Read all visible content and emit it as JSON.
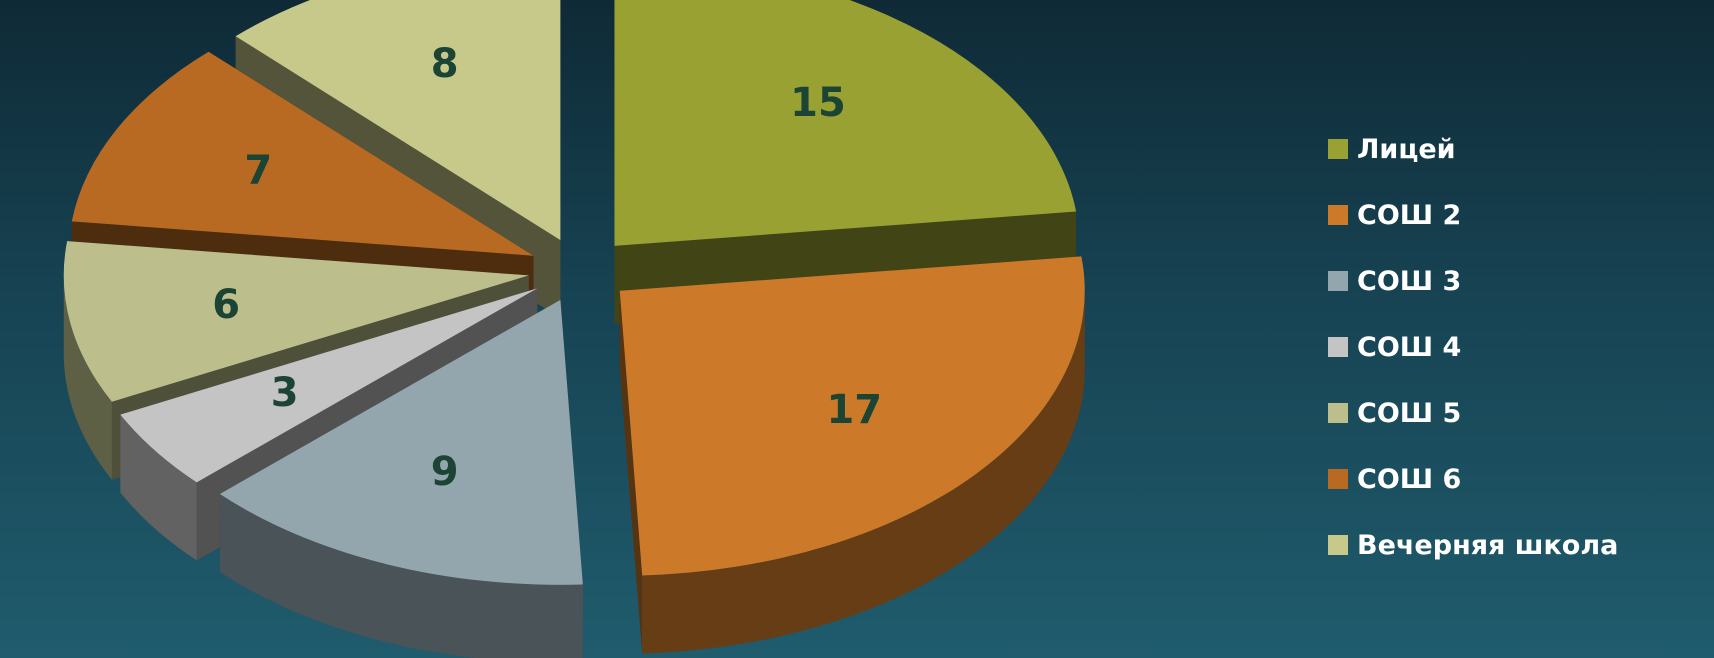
{
  "chart_data": {
    "type": "pie",
    "style": "3d-exploded",
    "categories": [
      "Лицей",
      "СОШ 2",
      "СОШ 3",
      "СОШ 4",
      "СОШ 5",
      "СОШ 6",
      "Вечерняя школа"
    ],
    "values": [
      15,
      17,
      9,
      3,
      6,
      7,
      8
    ],
    "colors": [
      "#9aa133",
      "#cc7a29",
      "#93a6ad",
      "#c4c4c4",
      "#bcbf8b",
      "#b86a22",
      "#c6c98a"
    ],
    "data_labels": [
      "15",
      "17",
      "9",
      "3",
      "6",
      "7",
      "8"
    ],
    "legend": {
      "position": "right",
      "entries": [
        "Лицей",
        "СОШ 2",
        "СОШ 3",
        "СОШ 4",
        "СОШ 5",
        "СОШ 6",
        "Вечерняя школа"
      ]
    }
  }
}
